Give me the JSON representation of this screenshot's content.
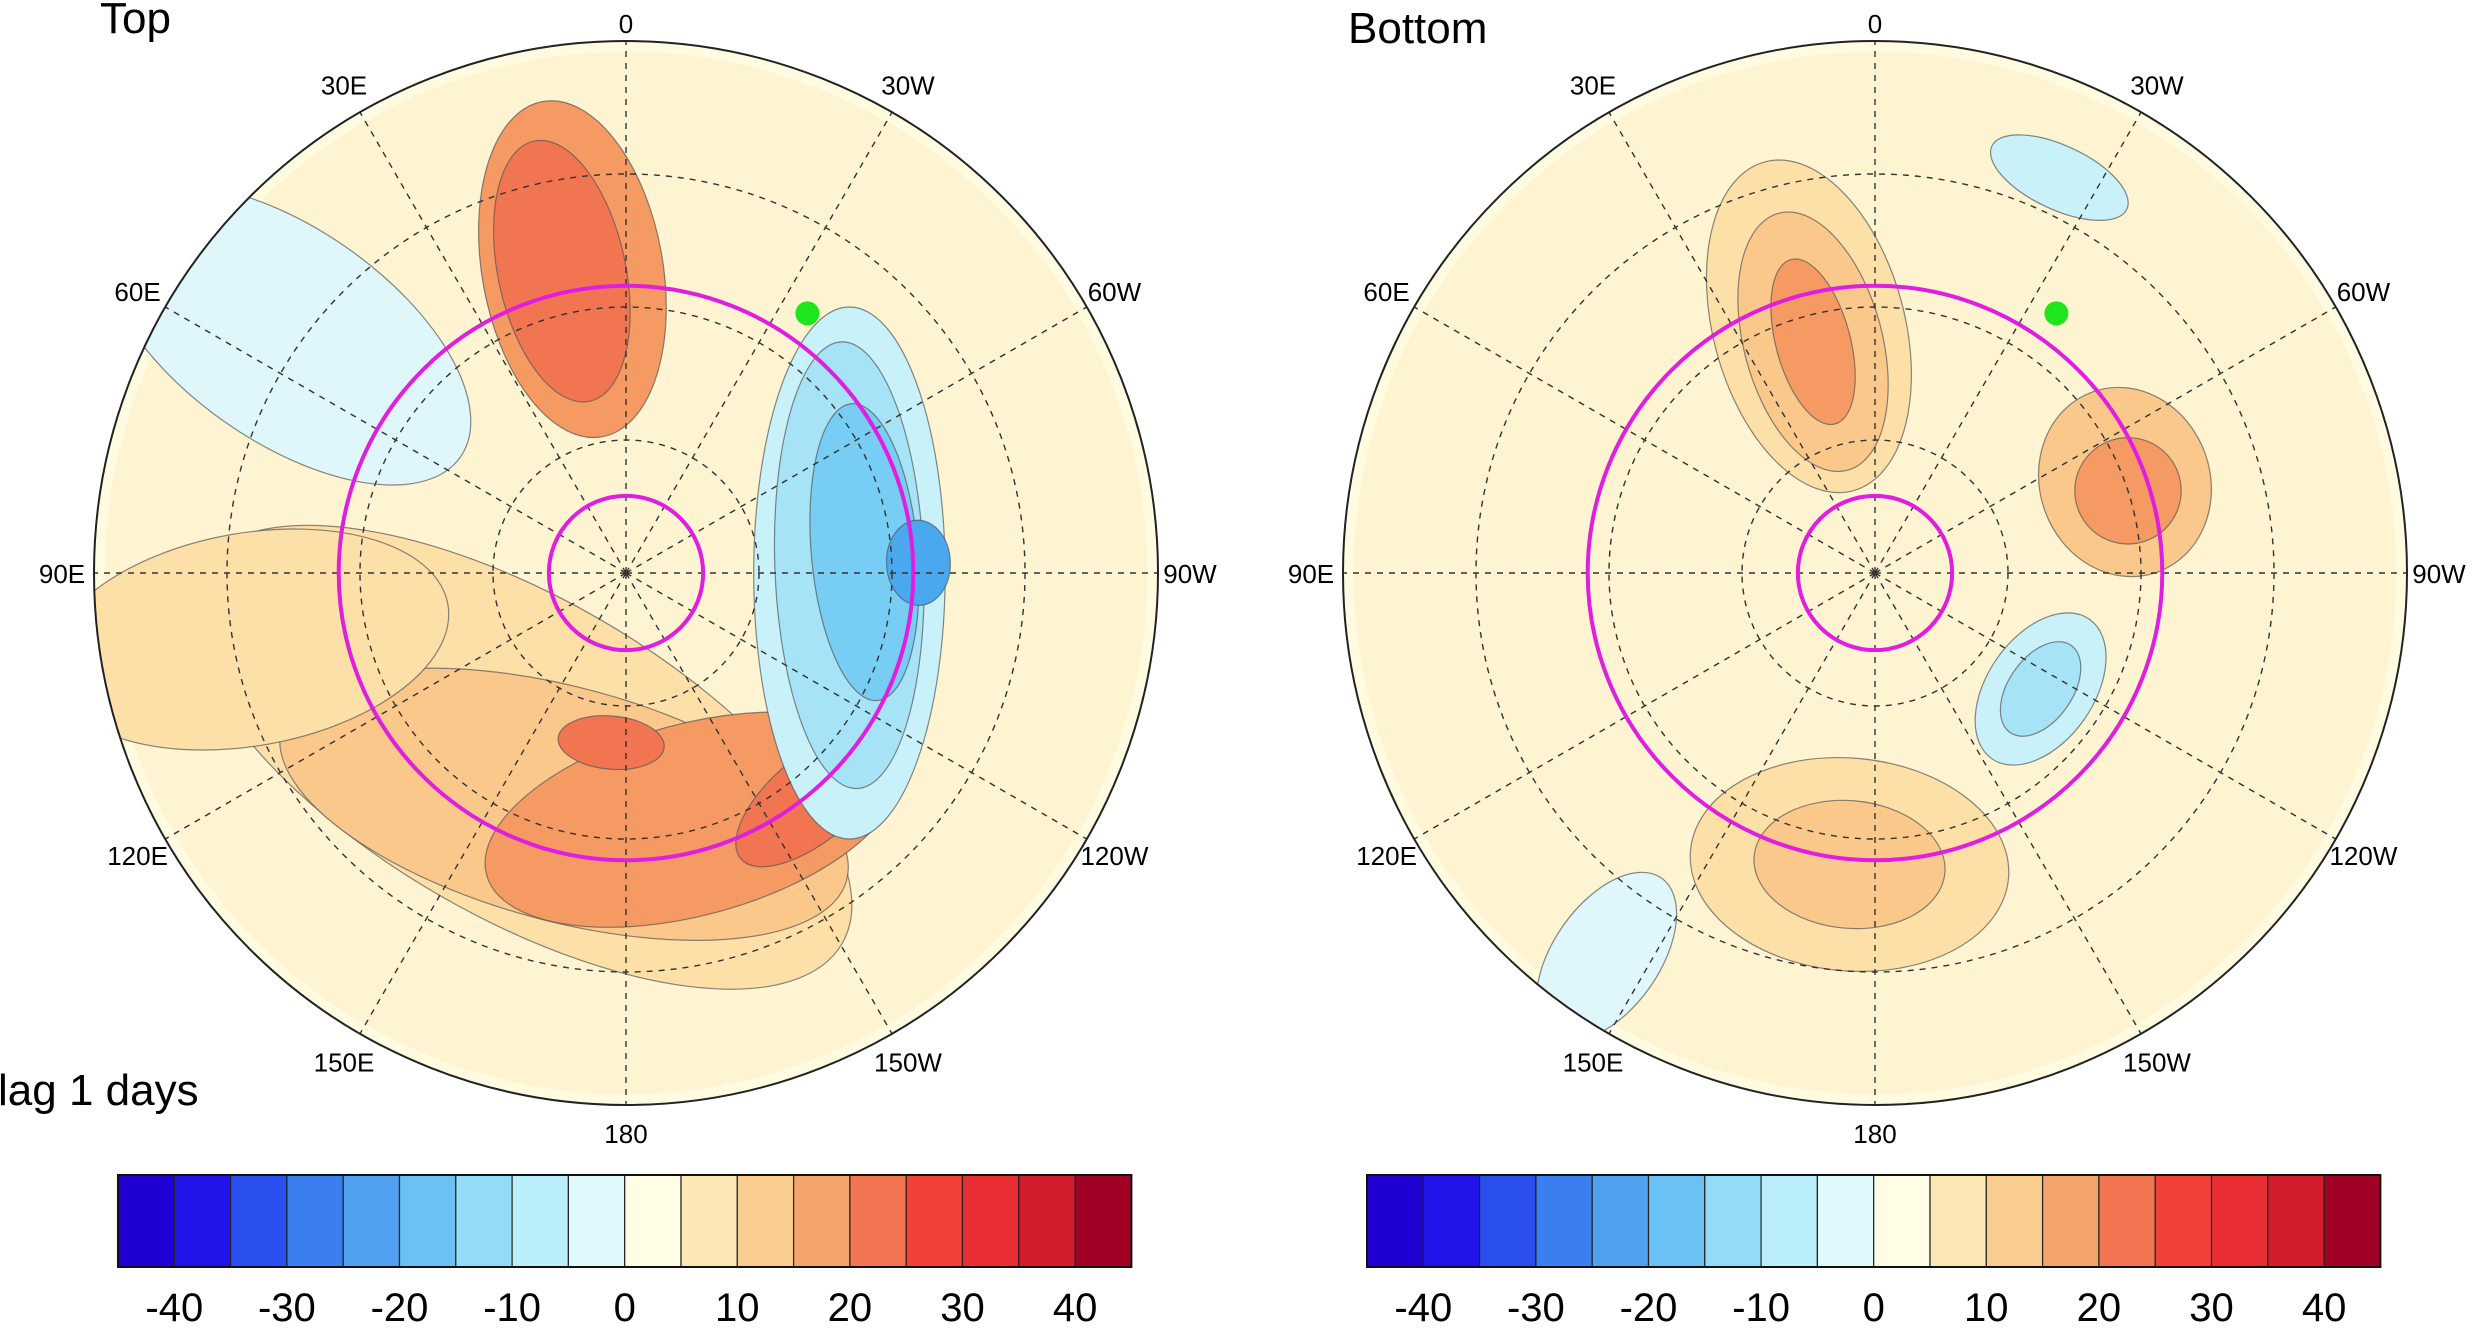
{
  "panels": [
    {
      "id": "top",
      "title": "Top",
      "longitude_labels": [
        "0",
        "30W",
        "60W",
        "90W",
        "120W",
        "150W",
        "180",
        "150E",
        "120E",
        "90E",
        "60E",
        "30E"
      ],
      "marker_color": "#1ee61e",
      "blobs": [
        {
          "level": 3,
          "color": "#f59a62",
          "lon": 10,
          "dist": 0.58,
          "rx": 0.17,
          "ry": 0.32
        },
        {
          "level": 4,
          "color": "#f27552",
          "lon": 12,
          "dist": 0.58,
          "rx": 0.12,
          "ry": 0.25
        },
        {
          "level": 1,
          "color": "#fde0a8",
          "lon": 150,
          "dist": 0.4,
          "rx": 0.7,
          "ry": 0.3
        },
        {
          "level": 2,
          "color": "#fbc88c",
          "lon": 165,
          "dist": 0.45,
          "rx": 0.55,
          "ry": 0.22
        },
        {
          "level": 3,
          "color": "#f59a62",
          "lon": -165,
          "dist": 0.48,
          "rx": 0.4,
          "ry": 0.18
        },
        {
          "level": 4,
          "color": "#f27552",
          "lon": -140,
          "dist": 0.55,
          "rx": 0.18,
          "ry": 0.08
        },
        {
          "level": 4,
          "color": "#f27552",
          "lon": 175,
          "dist": 0.32,
          "rx": 0.1,
          "ry": 0.05
        },
        {
          "level": -1,
          "color": "#c9f1fa",
          "lon": -90,
          "dist": 0.42,
          "rx": 0.5,
          "ry": 0.18
        },
        {
          "level": -2,
          "color": "#a6e3f7",
          "lon": -88,
          "dist": 0.42,
          "rx": 0.42,
          "ry": 0.14
        },
        {
          "level": -3,
          "color": "#77cdf3",
          "lon": -85,
          "dist": 0.45,
          "rx": 0.28,
          "ry": 0.1
        },
        {
          "level": -4,
          "color": "#4aa8ee",
          "lon": -88,
          "dist": 0.55,
          "rx": 0.08,
          "ry": 0.06
        },
        {
          "level": 1,
          "color": "#fde0a8",
          "lon": 100,
          "dist": 0.72,
          "rx": 0.2,
          "ry": 0.38
        },
        {
          "level": -1,
          "color": "#dff6fb",
          "lon": 55,
          "dist": 0.78,
          "rx": 0.2,
          "ry": 0.4
        }
      ]
    },
    {
      "id": "bottom",
      "title": "Bottom",
      "longitude_labels": [
        "0",
        "30W",
        "60W",
        "90W",
        "120W",
        "150W",
        "180",
        "150E",
        "120E",
        "90E",
        "60E",
        "30E"
      ],
      "marker_color": "#1ee61e",
      "blobs": [
        {
          "level": 1,
          "color": "#fde0a8",
          "lon": 15,
          "dist": 0.48,
          "rx": 0.18,
          "ry": 0.32
        },
        {
          "level": 2,
          "color": "#fbc88c",
          "lon": 15,
          "dist": 0.45,
          "rx": 0.13,
          "ry": 0.25
        },
        {
          "level": 3,
          "color": "#f59a62",
          "lon": 15,
          "dist": 0.45,
          "rx": 0.07,
          "ry": 0.16
        },
        {
          "level": 2,
          "color": "#fbc88c",
          "lon": -70,
          "dist": 0.5,
          "rx": 0.18,
          "ry": 0.16
        },
        {
          "level": 3,
          "color": "#f59a62",
          "lon": -72,
          "dist": 0.5,
          "rx": 0.1,
          "ry": 0.1
        },
        {
          "level": -1,
          "color": "#c9f1fa",
          "lon": -125,
          "dist": 0.38,
          "rx": 0.16,
          "ry": 0.1
        },
        {
          "level": -2,
          "color": "#a6e3f7",
          "lon": -125,
          "dist": 0.38,
          "rx": 0.1,
          "ry": 0.06
        },
        {
          "level": -1,
          "color": "#c9f1fa",
          "lon": -25,
          "dist": 0.82,
          "rx": 0.14,
          "ry": 0.06
        },
        {
          "level": 1,
          "color": "#fde0a8",
          "lon": 175,
          "dist": 0.55,
          "rx": 0.3,
          "ry": 0.2
        },
        {
          "level": 2,
          "color": "#fbc88c",
          "lon": 175,
          "dist": 0.55,
          "rx": 0.18,
          "ry": 0.12
        },
        {
          "level": -1,
          "color": "#dff6fb",
          "lon": 145,
          "dist": 0.88,
          "rx": 0.1,
          "ry": 0.18
        }
      ]
    }
  ],
  "annotation": "lag 1 days",
  "colorbar": {
    "colors": [
      "#1e00d2",
      "#2014ea",
      "#2a4fee",
      "#3a7ef0",
      "#50a2f0",
      "#6cc1f4",
      "#93dcf8",
      "#b9eefa",
      "#e0f9fc",
      "#fffde6",
      "#fbe8b6",
      "#f9cd90",
      "#f5a56a",
      "#f27552",
      "#f04038",
      "#e82e34",
      "#d21c2c",
      "#a00024"
    ],
    "tick_labels": [
      "-40",
      "-30",
      "-20",
      "-10",
      "0",
      "10",
      "20",
      "30",
      "40"
    ]
  },
  "legend_colors_note": "contour shading from -40 to 40"
}
